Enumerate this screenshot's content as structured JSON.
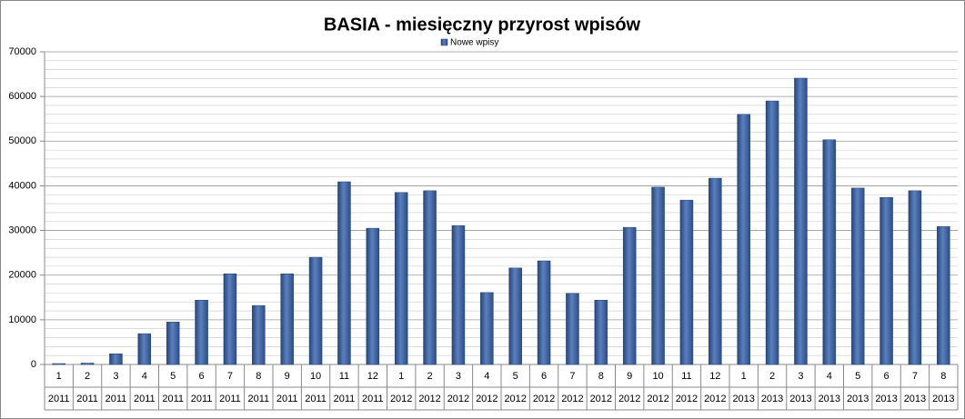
{
  "chart_data": {
    "type": "bar",
    "title": "BASIA - miesięczny przyrost wpisów",
    "categories": [
      "1",
      "2",
      "3",
      "4",
      "5",
      "6",
      "7",
      "8",
      "9",
      "10",
      "11",
      "12",
      "1",
      "2",
      "3",
      "4",
      "5",
      "6",
      "7",
      "8",
      "9",
      "10",
      "11",
      "12",
      "1",
      "2",
      "3",
      "4",
      "5",
      "6",
      "7",
      "8"
    ],
    "category_years": [
      "2011",
      "2011",
      "2011",
      "2011",
      "2011",
      "2011",
      "2011",
      "2011",
      "2011",
      "2011",
      "2011",
      "2011",
      "2012",
      "2012",
      "2012",
      "2012",
      "2012",
      "2012",
      "2012",
      "2012",
      "2012",
      "2012",
      "2012",
      "2012",
      "2013",
      "2013",
      "2013",
      "2013",
      "2013",
      "2013",
      "2013",
      "2013"
    ],
    "series": [
      {
        "name": "Nowe wpisy",
        "color": "#3a5f9b",
        "values": [
          200,
          300,
          2400,
          6900,
          9500,
          14400,
          20300,
          13200,
          20300,
          24000,
          40900,
          30500,
          38500,
          38900,
          31100,
          16100,
          21600,
          23200,
          15900,
          14400,
          30700,
          39700,
          36800,
          41700,
          56000,
          59000,
          64100,
          50300,
          39500,
          37400,
          38900,
          30900
        ]
      }
    ],
    "ylim": [
      0,
      70000
    ],
    "yticks": [
      0,
      10000,
      20000,
      30000,
      40000,
      50000,
      60000,
      70000
    ],
    "minor_yticks": [
      2000,
      4000,
      6000,
      8000,
      12000,
      14000,
      16000,
      18000,
      22000,
      24000,
      26000,
      28000,
      32000,
      34000,
      36000,
      38000,
      42000,
      44000,
      46000,
      48000,
      52000,
      54000,
      56000,
      58000,
      62000,
      64000,
      66000,
      68000
    ],
    "grid": true,
    "legend": "top"
  }
}
